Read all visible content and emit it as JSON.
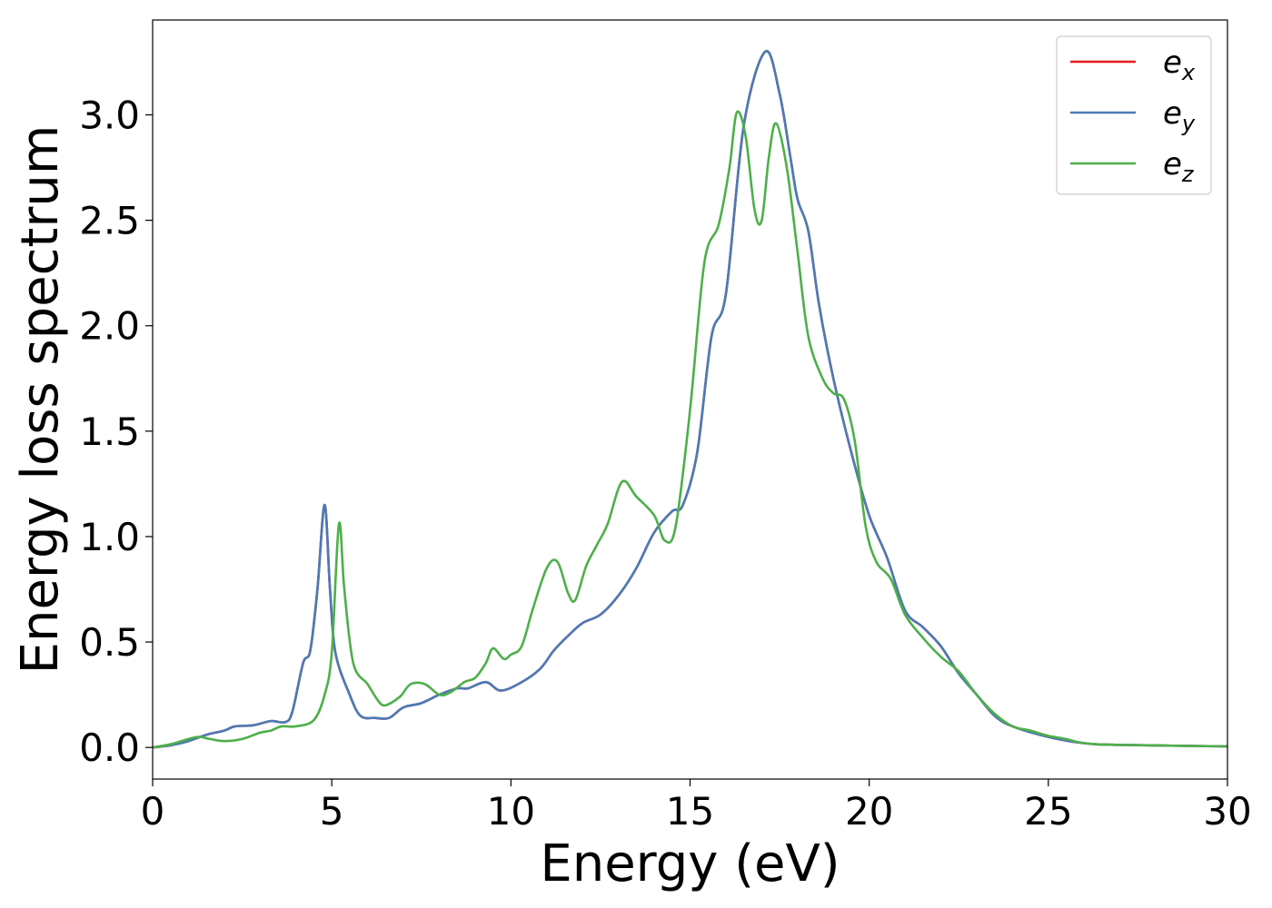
{
  "chart_data": {
    "type": "line",
    "xlabel": "Energy (eV)",
    "ylabel": "Energy loss spectrum",
    "xlim": [
      0,
      30
    ],
    "ylim": [
      -0.15,
      3.45
    ],
    "xticks": [
      0,
      5,
      10,
      15,
      20,
      25,
      30
    ],
    "yticks": [
      0.0,
      0.5,
      1.0,
      1.5,
      2.0,
      2.5,
      3.0
    ],
    "xtick_labels": [
      "0",
      "5",
      "10",
      "15",
      "20",
      "25",
      "30"
    ],
    "ytick_labels": [
      "0.0",
      "0.5",
      "1.0",
      "1.5",
      "2.0",
      "2.5",
      "3.0"
    ],
    "grid": false,
    "legend_position": "top-right",
    "series": [
      {
        "name": "e_x",
        "legend_main": "e",
        "legend_sub": "x",
        "color": "#e41a1c",
        "points": [
          [
            0,
            0
          ],
          [
            0.5,
            0.01
          ],
          [
            1,
            0.03
          ],
          [
            1.5,
            0.06
          ],
          [
            2,
            0.08
          ],
          [
            2.3,
            0.1
          ],
          [
            2.8,
            0.105
          ],
          [
            3.3,
            0.125
          ],
          [
            3.7,
            0.12
          ],
          [
            3.9,
            0.17
          ],
          [
            4.2,
            0.4
          ],
          [
            4.4,
            0.46
          ],
          [
            4.6,
            0.75
          ],
          [
            4.8,
            1.15
          ],
          [
            4.95,
            0.75
          ],
          [
            5.1,
            0.45
          ],
          [
            5.5,
            0.25
          ],
          [
            5.8,
            0.15
          ],
          [
            6.2,
            0.14
          ],
          [
            6.6,
            0.14
          ],
          [
            7,
            0.19
          ],
          [
            7.5,
            0.21
          ],
          [
            8,
            0.25
          ],
          [
            8.5,
            0.28
          ],
          [
            8.8,
            0.28
          ],
          [
            9.3,
            0.31
          ],
          [
            9.7,
            0.27
          ],
          [
            10.2,
            0.3
          ],
          [
            10.8,
            0.37
          ],
          [
            11.2,
            0.46
          ],
          [
            11.6,
            0.53
          ],
          [
            12,
            0.59
          ],
          [
            12.5,
            0.63
          ],
          [
            13,
            0.72
          ],
          [
            13.5,
            0.85
          ],
          [
            14,
            1.02
          ],
          [
            14.5,
            1.12
          ],
          [
            14.8,
            1.15
          ],
          [
            15.2,
            1.4
          ],
          [
            15.6,
            1.95
          ],
          [
            16,
            2.15
          ],
          [
            16.5,
            2.95
          ],
          [
            17.1,
            3.3
          ],
          [
            17.5,
            3.1
          ],
          [
            17.8,
            2.8
          ],
          [
            18,
            2.6
          ],
          [
            18.3,
            2.45
          ],
          [
            18.6,
            2.1
          ],
          [
            19,
            1.75
          ],
          [
            19.5,
            1.4
          ],
          [
            20,
            1.1
          ],
          [
            20.5,
            0.9
          ],
          [
            21,
            0.65
          ],
          [
            21.5,
            0.57
          ],
          [
            22,
            0.48
          ],
          [
            22.5,
            0.35
          ],
          [
            23,
            0.25
          ],
          [
            23.5,
            0.15
          ],
          [
            24,
            0.1
          ],
          [
            25,
            0.05
          ],
          [
            26,
            0.02
          ],
          [
            27,
            0.012
          ],
          [
            30,
            0.005
          ]
        ]
      },
      {
        "name": "e_y",
        "legend_main": "e",
        "legend_sub": "y",
        "color": "#4a7bb7",
        "points": [
          [
            0,
            0
          ],
          [
            0.5,
            0.01
          ],
          [
            1,
            0.03
          ],
          [
            1.5,
            0.06
          ],
          [
            2,
            0.08
          ],
          [
            2.3,
            0.1
          ],
          [
            2.8,
            0.105
          ],
          [
            3.3,
            0.125
          ],
          [
            3.7,
            0.12
          ],
          [
            3.9,
            0.17
          ],
          [
            4.2,
            0.4
          ],
          [
            4.4,
            0.46
          ],
          [
            4.6,
            0.75
          ],
          [
            4.8,
            1.15
          ],
          [
            4.95,
            0.75
          ],
          [
            5.1,
            0.45
          ],
          [
            5.5,
            0.25
          ],
          [
            5.8,
            0.15
          ],
          [
            6.2,
            0.14
          ],
          [
            6.6,
            0.14
          ],
          [
            7,
            0.19
          ],
          [
            7.5,
            0.21
          ],
          [
            8,
            0.25
          ],
          [
            8.5,
            0.28
          ],
          [
            8.8,
            0.28
          ],
          [
            9.3,
            0.31
          ],
          [
            9.7,
            0.27
          ],
          [
            10.2,
            0.3
          ],
          [
            10.8,
            0.37
          ],
          [
            11.2,
            0.46
          ],
          [
            11.6,
            0.53
          ],
          [
            12,
            0.59
          ],
          [
            12.5,
            0.63
          ],
          [
            13,
            0.72
          ],
          [
            13.5,
            0.85
          ],
          [
            14,
            1.02
          ],
          [
            14.5,
            1.12
          ],
          [
            14.8,
            1.15
          ],
          [
            15.2,
            1.4
          ],
          [
            15.6,
            1.95
          ],
          [
            16,
            2.15
          ],
          [
            16.5,
            2.95
          ],
          [
            17.1,
            3.3
          ],
          [
            17.5,
            3.1
          ],
          [
            17.8,
            2.8
          ],
          [
            18,
            2.6
          ],
          [
            18.3,
            2.45
          ],
          [
            18.6,
            2.1
          ],
          [
            19,
            1.75
          ],
          [
            19.5,
            1.4
          ],
          [
            20,
            1.1
          ],
          [
            20.5,
            0.9
          ],
          [
            21,
            0.65
          ],
          [
            21.5,
            0.57
          ],
          [
            22,
            0.48
          ],
          [
            22.5,
            0.35
          ],
          [
            23,
            0.25
          ],
          [
            23.5,
            0.15
          ],
          [
            24,
            0.1
          ],
          [
            25,
            0.05
          ],
          [
            26,
            0.02
          ],
          [
            27,
            0.012
          ],
          [
            30,
            0.005
          ]
        ]
      },
      {
        "name": "e_z",
        "legend_main": "e",
        "legend_sub": "z",
        "color": "#4daf4a",
        "points": [
          [
            0,
            0
          ],
          [
            0.5,
            0.015
          ],
          [
            1,
            0.04
          ],
          [
            1.3,
            0.05
          ],
          [
            1.6,
            0.04
          ],
          [
            2,
            0.03
          ],
          [
            2.5,
            0.04
          ],
          [
            3,
            0.07
          ],
          [
            3.3,
            0.08
          ],
          [
            3.6,
            0.1
          ],
          [
            4,
            0.1
          ],
          [
            4.5,
            0.13
          ],
          [
            4.8,
            0.25
          ],
          [
            5,
            0.45
          ],
          [
            5.2,
            1.06
          ],
          [
            5.35,
            0.75
          ],
          [
            5.6,
            0.4
          ],
          [
            6,
            0.3
          ],
          [
            6.3,
            0.22
          ],
          [
            6.5,
            0.2
          ],
          [
            6.9,
            0.24
          ],
          [
            7.2,
            0.3
          ],
          [
            7.6,
            0.3
          ],
          [
            8,
            0.25
          ],
          [
            8.3,
            0.26
          ],
          [
            8.7,
            0.31
          ],
          [
            9,
            0.33
          ],
          [
            9.3,
            0.4
          ],
          [
            9.5,
            0.47
          ],
          [
            9.8,
            0.42
          ],
          [
            10,
            0.44
          ],
          [
            10.3,
            0.48
          ],
          [
            10.6,
            0.65
          ],
          [
            11,
            0.85
          ],
          [
            11.3,
            0.88
          ],
          [
            11.6,
            0.73
          ],
          [
            11.8,
            0.7
          ],
          [
            12.1,
            0.86
          ],
          [
            12.4,
            0.96
          ],
          [
            12.7,
            1.06
          ],
          [
            13.1,
            1.26
          ],
          [
            13.5,
            1.19
          ],
          [
            14,
            1.1
          ],
          [
            14.3,
            0.98
          ],
          [
            14.6,
            1.05
          ],
          [
            15,
            1.6
          ],
          [
            15.4,
            2.3
          ],
          [
            15.8,
            2.48
          ],
          [
            16.1,
            2.75
          ],
          [
            16.3,
            3.01
          ],
          [
            16.55,
            2.9
          ],
          [
            16.8,
            2.55
          ],
          [
            17.0,
            2.5
          ],
          [
            17.2,
            2.8
          ],
          [
            17.4,
            2.96
          ],
          [
            17.7,
            2.75
          ],
          [
            18,
            2.35
          ],
          [
            18.3,
            1.95
          ],
          [
            18.7,
            1.75
          ],
          [
            19,
            1.68
          ],
          [
            19.3,
            1.65
          ],
          [
            19.6,
            1.45
          ],
          [
            19.9,
            1.05
          ],
          [
            20.2,
            0.88
          ],
          [
            20.6,
            0.8
          ],
          [
            21,
            0.63
          ],
          [
            21.5,
            0.52
          ],
          [
            22,
            0.43
          ],
          [
            22.5,
            0.36
          ],
          [
            23,
            0.25
          ],
          [
            23.5,
            0.16
          ],
          [
            24,
            0.1
          ],
          [
            24.5,
            0.08
          ],
          [
            25,
            0.055
          ],
          [
            25.5,
            0.04
          ],
          [
            26,
            0.02
          ],
          [
            27,
            0.012
          ],
          [
            30,
            0.005
          ]
        ]
      }
    ]
  }
}
